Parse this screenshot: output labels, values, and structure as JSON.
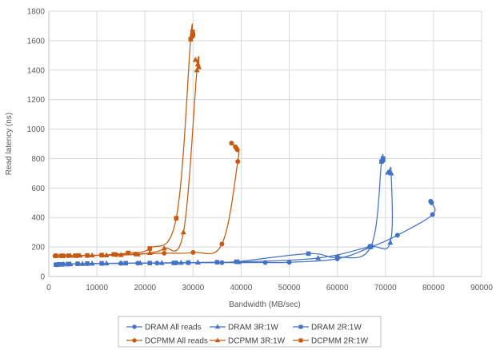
{
  "chart_data": {
    "type": "scatter",
    "title": "",
    "xlabel": "Bandwidth (MB/sec)",
    "ylabel": "Read latency (ns)",
    "xlim": [
      0,
      90000
    ],
    "ylim": [
      0,
      1800
    ],
    "xticks": [
      0,
      10000,
      20000,
      30000,
      40000,
      50000,
      60000,
      70000,
      80000,
      90000
    ],
    "yticks": [
      0,
      200,
      400,
      600,
      800,
      1000,
      1200,
      1400,
      1600,
      1800
    ],
    "xtick_labels": [
      "0",
      "10000",
      "20000",
      "30000",
      "40000",
      "50000",
      "60000",
      "70000",
      "80000",
      "90000"
    ],
    "ytick_labels": [
      "0",
      "200",
      "400",
      "600",
      "800",
      "1000",
      "1200",
      "1400",
      "1600",
      "1800"
    ],
    "grid": true,
    "legend_position": "bottom",
    "series": [
      {
        "name": "DRAM All reads",
        "color": "#4472c4",
        "marker": "circle",
        "x": [
          1500,
          2000,
          3000,
          4000,
          6000,
          8000,
          11000,
          15000,
          18500,
          22500,
          26500,
          29000,
          36000,
          45000,
          50000,
          60000,
          67000,
          72500,
          79800,
          79600,
          79400
        ],
        "y": [
          80,
          82,
          83,
          84,
          86,
          87,
          88,
          89,
          90,
          91,
          92,
          93,
          94,
          95,
          96,
          120,
          200,
          280,
          420,
          500,
          510
        ]
      },
      {
        "name": "DRAM 3R:1W",
        "color": "#4472c4",
        "marker": "triangle",
        "x": [
          1800,
          3000,
          4500,
          7000,
          9000,
          12000,
          15000,
          19000,
          23500,
          27500,
          31000,
          39500,
          56000,
          66500,
          71000,
          71200,
          70800,
          70500
        ],
        "y": [
          80,
          82,
          84,
          86,
          88,
          89,
          90,
          91,
          92,
          93,
          95,
          98,
          125,
          200,
          230,
          700,
          710,
          705
        ]
      },
      {
        "name": "DRAM 2R:1W",
        "color": "#4472c4",
        "marker": "square",
        "x": [
          1500,
          2500,
          4000,
          6000,
          8000,
          11000,
          16000,
          21000,
          26000,
          29000,
          35000,
          39000,
          54000,
          60000,
          67000,
          69200,
          69500,
          69500
        ],
        "y": [
          80,
          82,
          84,
          86,
          88,
          89,
          90,
          91,
          92,
          94,
          97,
          100,
          155,
          130,
          205,
          780,
          790,
          800
        ]
      },
      {
        "name": "DCPMM All reads",
        "color": "#c55a11",
        "marker": "circle",
        "x": [
          1300,
          2500,
          4000,
          6000,
          8000,
          11000,
          14000,
          18000,
          24000,
          30000,
          36000,
          39300,
          39200,
          39000,
          38800,
          38000
        ],
        "y": [
          140,
          140,
          141,
          142,
          143,
          145,
          148,
          152,
          158,
          163,
          220,
          780,
          860,
          870,
          880,
          905
        ]
      },
      {
        "name": "DCPMM 3R:1W",
        "color": "#c55a11",
        "marker": "triangle",
        "x": [
          1500,
          2800,
          4500,
          6500,
          9000,
          12000,
          15000,
          18500,
          21000,
          24000,
          28000,
          30800,
          31200,
          31000,
          30500
        ],
        "y": [
          140,
          140,
          141,
          142,
          143,
          144,
          146,
          150,
          160,
          190,
          300,
          1400,
          1420,
          1440,
          1470
        ]
      },
      {
        "name": "DCPMM 2R:1W",
        "color": "#c55a11",
        "marker": "square",
        "x": [
          1500,
          3000,
          5500,
          8000,
          11000,
          13500,
          16500,
          21000,
          26500,
          29500,
          29800,
          30000,
          29900
        ],
        "y": [
          140,
          140,
          141,
          142,
          145,
          150,
          160,
          190,
          395,
          1610,
          1630,
          1640,
          1660
        ]
      }
    ]
  }
}
